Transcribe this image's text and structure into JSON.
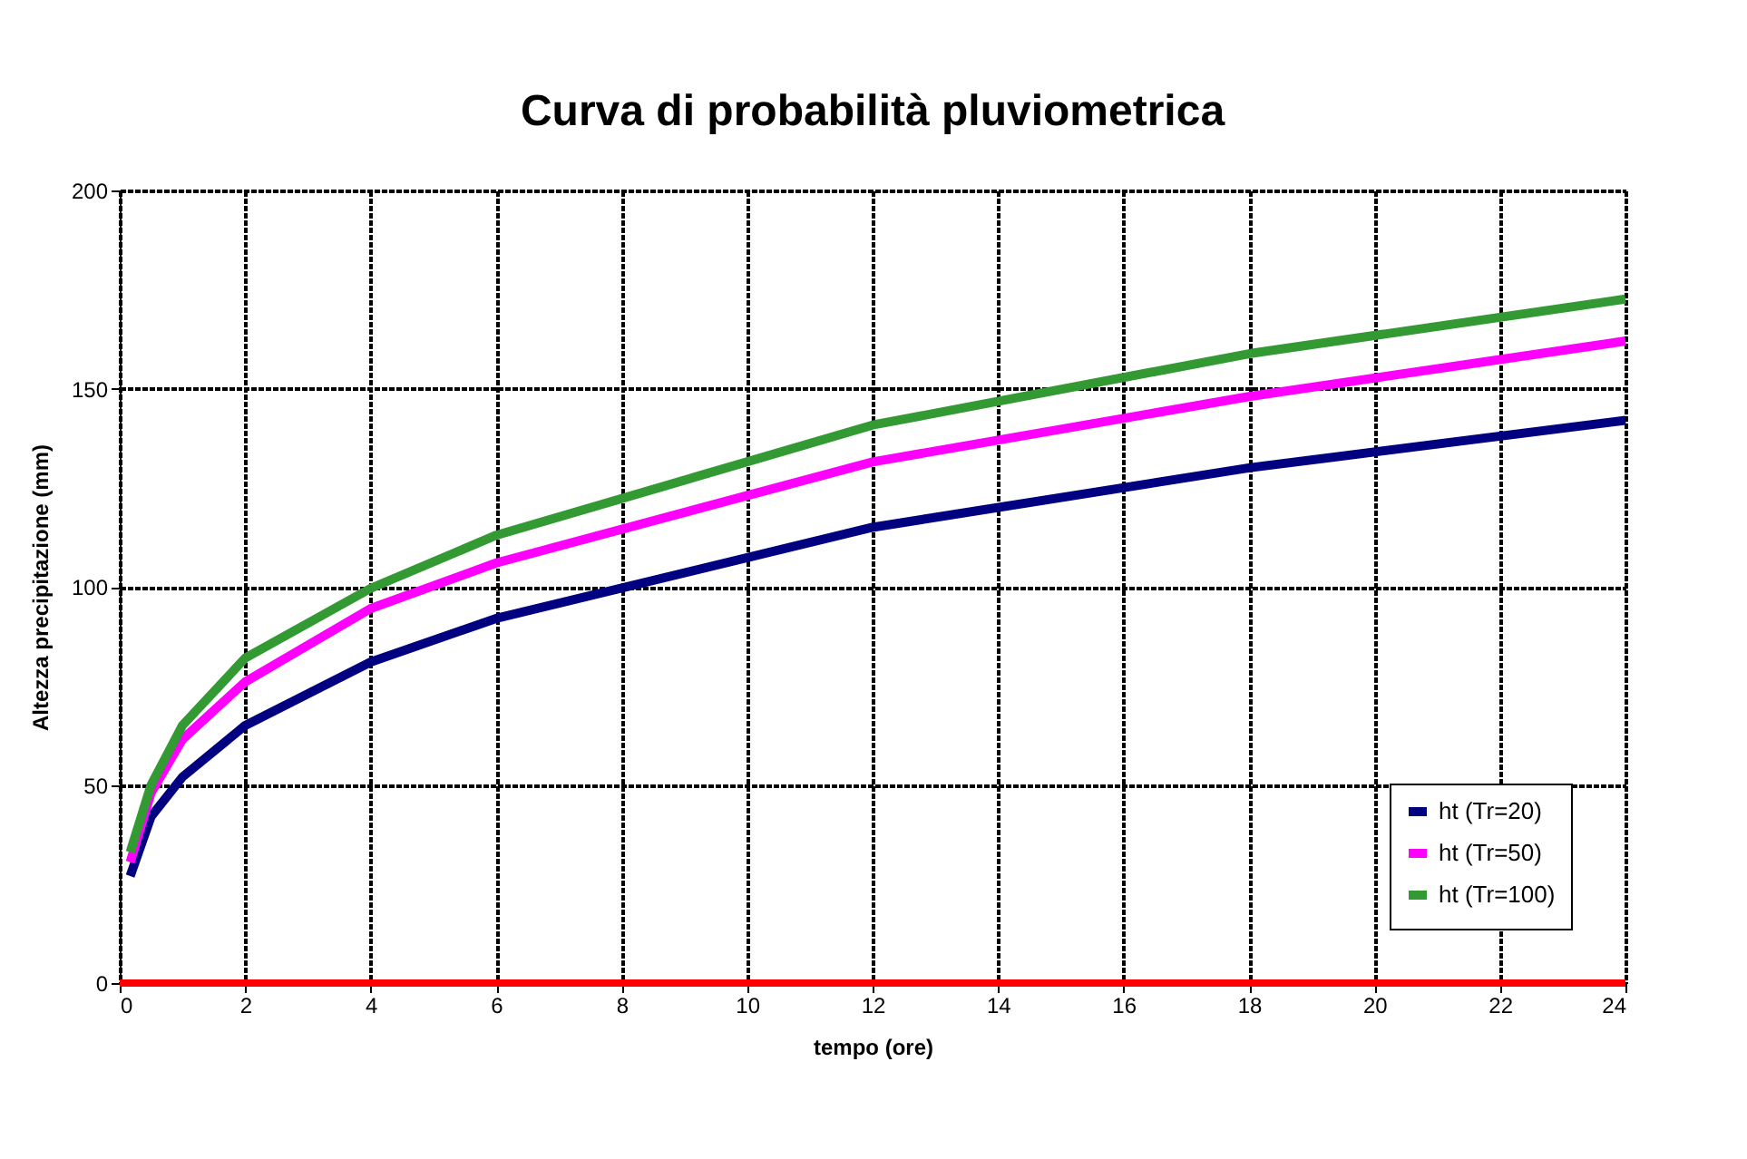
{
  "chart_data": {
    "type": "line",
    "title": "Curva di probabilità pluviometrica",
    "xlabel": "tempo (ore)",
    "ylabel": "Altezza precipitazione (mm)",
    "x": [
      0.1667,
      0.5,
      1,
      2,
      4,
      6,
      12,
      18,
      24
    ],
    "series": [
      {
        "name": "ht (Tr=20)",
        "color": "#000080",
        "values": [
          27,
          42,
          52,
          65,
          81,
          92,
          115,
          130,
          142
        ]
      },
      {
        "name": "ht (Tr=50)",
        "color": "#ff00ff",
        "values": [
          30.5,
          48,
          61.5,
          76,
          94.5,
          106,
          131.5,
          148,
          162
        ]
      },
      {
        "name": "ht (Tr=100)",
        "color": "#339933",
        "values": [
          33,
          50,
          65,
          82,
          99.6,
          113,
          140.8,
          158.8,
          172.6
        ]
      }
    ],
    "xlim": [
      0,
      24
    ],
    "xticks": [
      0,
      2,
      4,
      6,
      8,
      10,
      12,
      14,
      16,
      18,
      20,
      22,
      24
    ],
    "ylim": [
      0,
      200
    ],
    "yticks": [
      0,
      50,
      100,
      150,
      200
    ],
    "ref_lines": [
      {
        "axis": "y",
        "value": 0,
        "color": "#ff0000"
      }
    ],
    "grid": true,
    "legend": "bottom right",
    "marker": "none",
    "line_style": "solid"
  }
}
